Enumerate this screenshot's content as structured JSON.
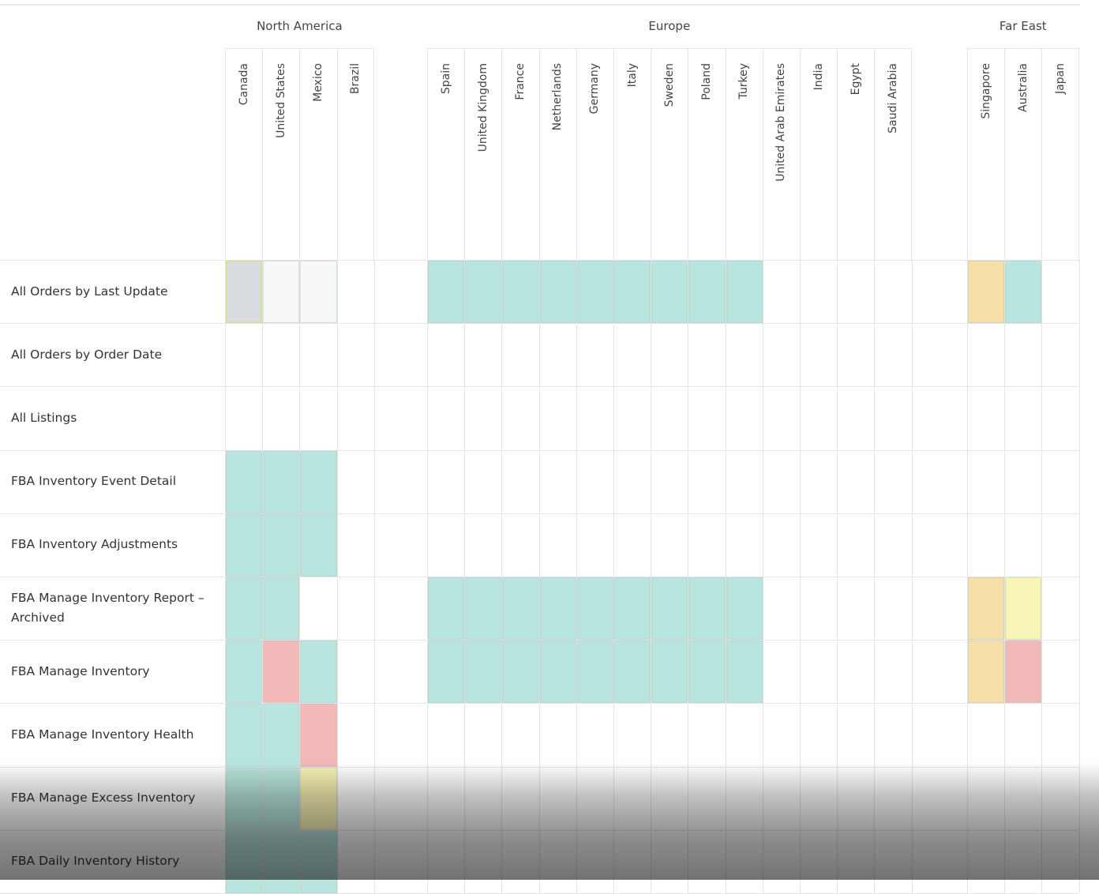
{
  "colors": {
    "supported": "#b8e6de",
    "partial": "#f7dfa8",
    "unsupported": "#f3b9b9",
    "limited": "#f8f4b5",
    "pending": "#d9dde2",
    "unknown": "#f6f7f8",
    "empty": "#ffffff"
  },
  "regions": [
    {
      "name": "North America",
      "countries": [
        "Canada",
        "United States",
        "Mexico",
        "Brazil"
      ]
    },
    {
      "name": "Europe",
      "countries": [
        "Spain",
        "United Kingdom",
        "France",
        "Netherlands",
        "Germany",
        "Italy",
        "Sweden",
        "Poland",
        "Turkey",
        "United Arab Emirates",
        "India",
        "Egypt",
        "Saudi Arabia"
      ]
    },
    {
      "name": "Far East",
      "countries": [
        "Singapore",
        "Australia",
        "Japan"
      ]
    }
  ],
  "rows": [
    {
      "label": "All Orders by Last Update",
      "cells": [
        "pending",
        "unknown",
        "unknown",
        "empty",
        "supported",
        "supported",
        "supported",
        "supported",
        "supported",
        "supported",
        "supported",
        "supported",
        "supported",
        "empty",
        "empty",
        "empty",
        "empty",
        "partial",
        "supported",
        "empty"
      ]
    },
    {
      "label": "All Orders by Order Date",
      "cells": [
        "empty",
        "empty",
        "empty",
        "empty",
        "empty",
        "empty",
        "empty",
        "empty",
        "empty",
        "empty",
        "empty",
        "empty",
        "empty",
        "empty",
        "empty",
        "empty",
        "empty",
        "empty",
        "empty",
        "empty"
      ]
    },
    {
      "label": "All Listings",
      "cells": [
        "empty",
        "empty",
        "empty",
        "empty",
        "empty",
        "empty",
        "empty",
        "empty",
        "empty",
        "empty",
        "empty",
        "empty",
        "empty",
        "empty",
        "empty",
        "empty",
        "empty",
        "empty",
        "empty",
        "empty"
      ]
    },
    {
      "label": "FBA Inventory Event Detail",
      "cells": [
        "supported",
        "supported",
        "supported",
        "empty",
        "empty",
        "empty",
        "empty",
        "empty",
        "empty",
        "empty",
        "empty",
        "empty",
        "empty",
        "empty",
        "empty",
        "empty",
        "empty",
        "empty",
        "empty",
        "empty"
      ]
    },
    {
      "label": "FBA Inventory Adjustments",
      "cells": [
        "supported",
        "supported",
        "supported",
        "empty",
        "empty",
        "empty",
        "empty",
        "empty",
        "empty",
        "empty",
        "empty",
        "empty",
        "empty",
        "empty",
        "empty",
        "empty",
        "empty",
        "empty",
        "empty",
        "empty"
      ]
    },
    {
      "label": "FBA Manage Inventory Report – Archived",
      "cells": [
        "supported",
        "supported",
        "empty",
        "empty",
        "supported",
        "supported",
        "supported",
        "supported",
        "supported",
        "supported",
        "supported",
        "supported",
        "supported",
        "empty",
        "empty",
        "empty",
        "empty",
        "partial",
        "limited",
        "empty"
      ]
    },
    {
      "label": "FBA Manage Inventory",
      "cells": [
        "supported",
        "unsupported",
        "supported",
        "empty",
        "supported",
        "supported",
        "supported",
        "supported",
        "supported",
        "supported",
        "supported",
        "supported",
        "supported",
        "empty",
        "empty",
        "empty",
        "empty",
        "partial",
        "unsupported",
        "empty"
      ]
    },
    {
      "label": "FBA Manage Inventory Health",
      "cells": [
        "supported",
        "supported",
        "unsupported",
        "empty",
        "empty",
        "empty",
        "empty",
        "empty",
        "empty",
        "empty",
        "empty",
        "empty",
        "empty",
        "empty",
        "empty",
        "empty",
        "empty",
        "empty",
        "empty",
        "empty"
      ]
    },
    {
      "label": "FBA Manage Excess Inventory",
      "cells": [
        "supported",
        "supported",
        "limited",
        "empty",
        "empty",
        "empty",
        "empty",
        "empty",
        "empty",
        "empty",
        "empty",
        "empty",
        "empty",
        "empty",
        "empty",
        "empty",
        "empty",
        "empty",
        "empty",
        "empty"
      ]
    },
    {
      "label": "FBA Daily Inventory History",
      "cells": [
        "supported",
        "supported",
        "supported",
        "empty",
        "empty",
        "empty",
        "empty",
        "empty",
        "empty",
        "empty",
        "empty",
        "empty",
        "empty",
        "empty",
        "empty",
        "empty",
        "empty",
        "empty",
        "empty",
        "empty"
      ]
    }
  ]
}
